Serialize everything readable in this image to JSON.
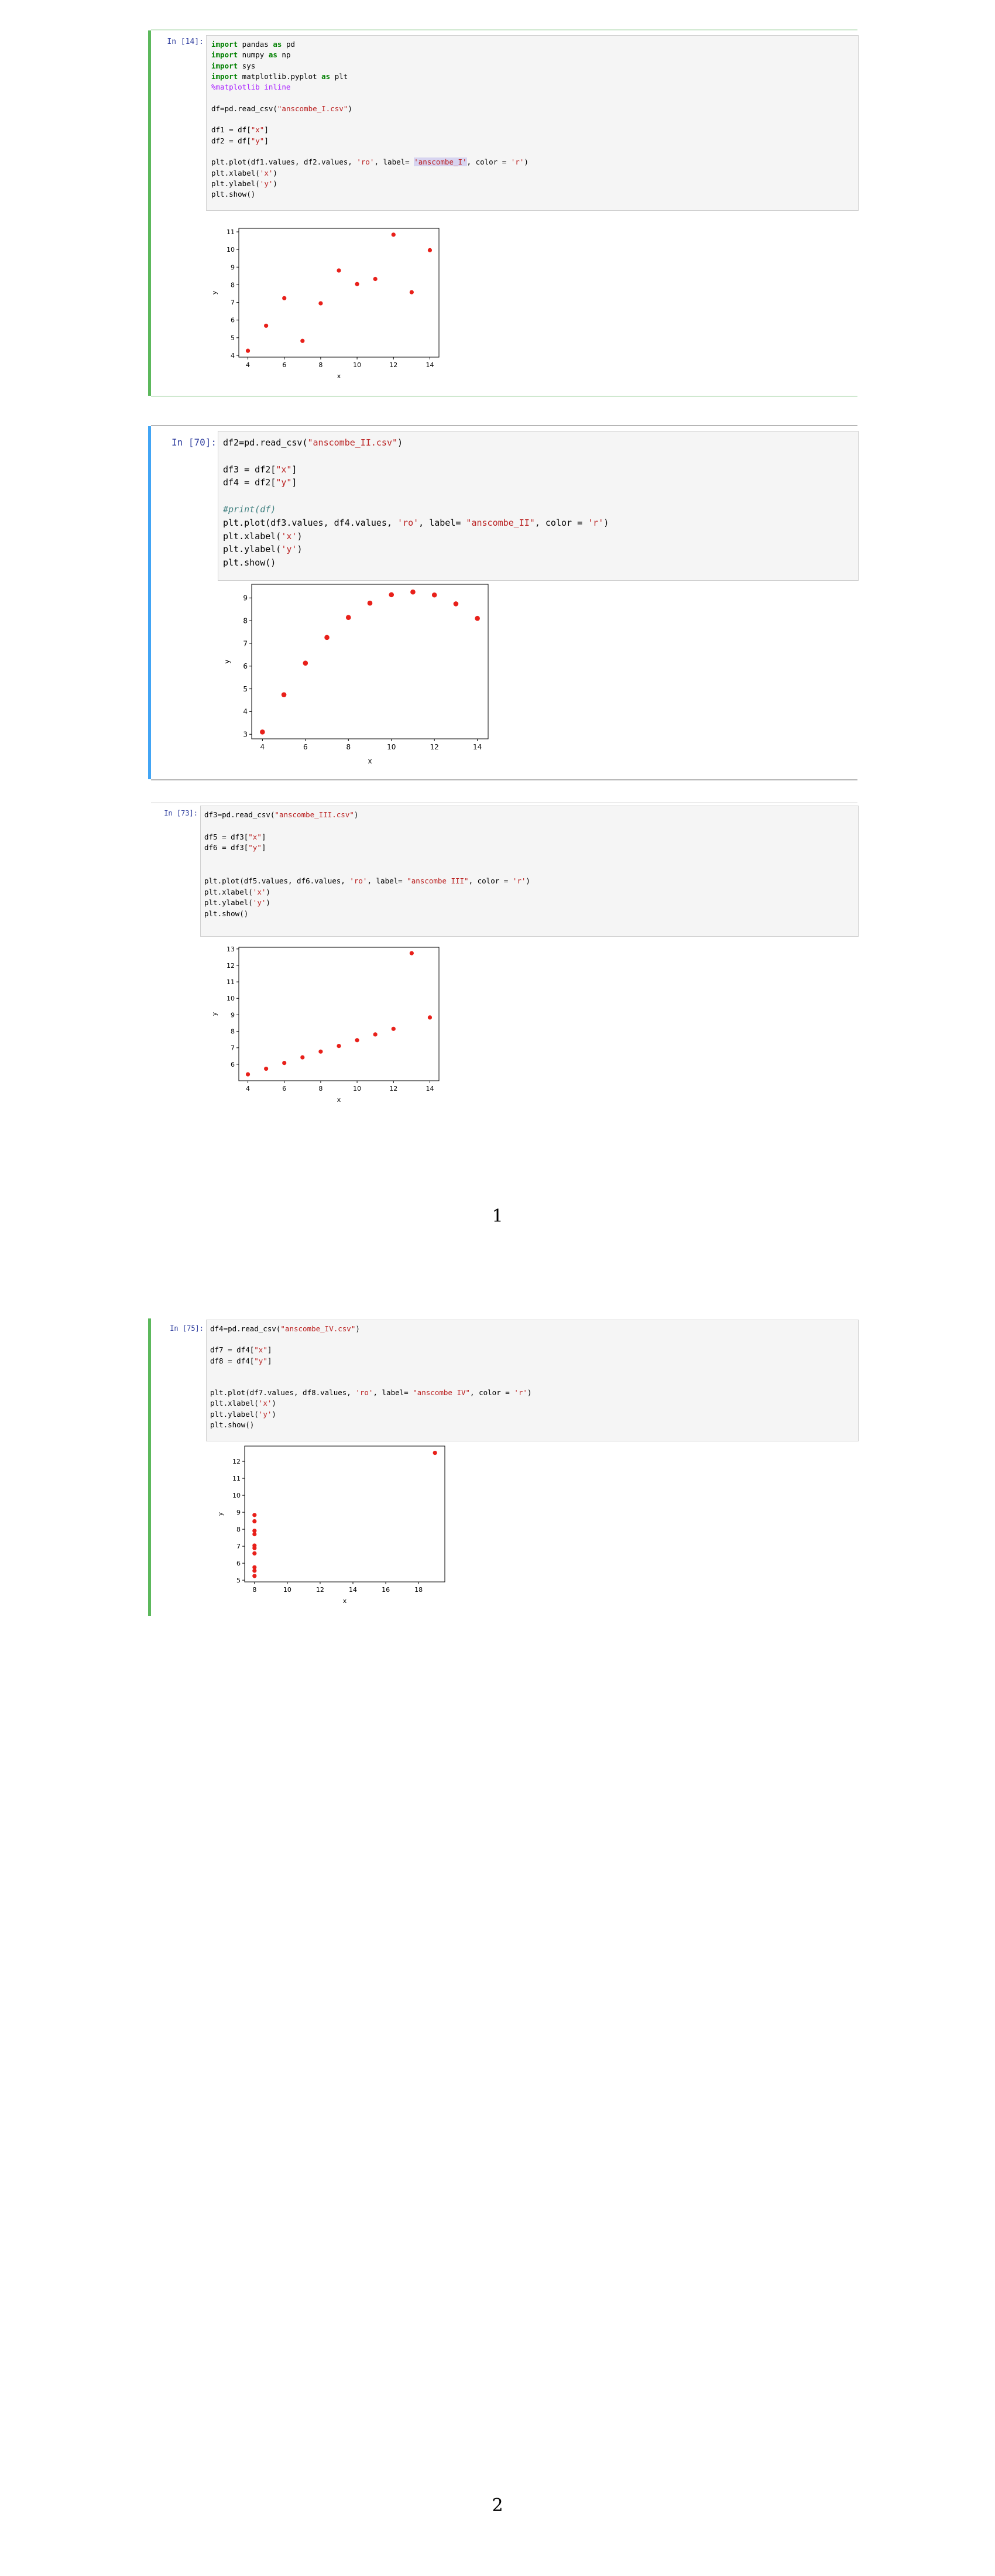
{
  "colors": {
    "marker": "#e8201a",
    "selected_cell": "#42a5f5",
    "cell": "#5cb85c",
    "prompt": "#303f9f"
  },
  "cells": [
    {
      "prompt": "In [14]:",
      "code": [
        [
          [
            "import",
            "kw"
          ],
          [
            " pandas ",
            ""
          ],
          [
            "as",
            "kw"
          ],
          [
            " pd",
            ""
          ]
        ],
        [
          [
            "import",
            "kw"
          ],
          [
            " numpy ",
            ""
          ],
          [
            "as",
            "kw"
          ],
          [
            " np",
            ""
          ]
        ],
        [
          [
            "import",
            "kw"
          ],
          [
            " sys",
            ""
          ]
        ],
        [
          [
            "import",
            "kw"
          ],
          [
            " matplotlib.pyplot ",
            ""
          ],
          [
            "as",
            "kw"
          ],
          [
            " plt",
            ""
          ]
        ],
        [
          [
            "%matplotlib inline",
            "mag"
          ]
        ],
        [],
        [
          [
            "df=pd.read_csv(",
            ""
          ],
          [
            "\"anscombe_I.csv\"",
            "str"
          ],
          [
            ")",
            ""
          ]
        ],
        [],
        [
          [
            "df1 = df[",
            ""
          ],
          [
            "\"x\"",
            "str"
          ],
          [
            "]",
            ""
          ]
        ],
        [
          [
            "df2 = df[",
            ""
          ],
          [
            "\"y\"",
            "str"
          ],
          [
            "]",
            ""
          ]
        ],
        [],
        [
          [
            "plt.plot(df1.values, df2.values, ",
            ""
          ],
          [
            "'ro'",
            "str"
          ],
          [
            ", label= ",
            ""
          ],
          [
            "'anscombe_I'",
            "str hl"
          ],
          [
            ", color = ",
            ""
          ],
          [
            "'r'",
            "str"
          ],
          [
            ")",
            ""
          ]
        ],
        [
          [
            "plt.xlabel(",
            ""
          ],
          [
            "'x'",
            "str"
          ],
          [
            ")",
            ""
          ]
        ],
        [
          [
            "plt.ylabel(",
            ""
          ],
          [
            "'y'",
            "str"
          ],
          [
            ")",
            ""
          ]
        ],
        [
          [
            "plt.show()",
            ""
          ]
        ]
      ],
      "chart_data": {
        "type": "scatter",
        "x": [
          10,
          8,
          13,
          9,
          11,
          14,
          6,
          4,
          12,
          7,
          5
        ],
        "y": [
          8.04,
          6.95,
          7.58,
          8.81,
          8.33,
          9.96,
          7.24,
          4.26,
          10.84,
          4.82,
          5.68
        ],
        "xlabel": "x",
        "ylabel": "y",
        "xticks": [
          4,
          6,
          8,
          10,
          12,
          14
        ],
        "yticks": [
          4,
          5,
          6,
          7,
          8,
          9,
          10,
          11
        ],
        "xlim": [
          3.5,
          14.5
        ],
        "ylim": [
          3.9,
          11.2
        ],
        "grid": false,
        "marker": "ro"
      }
    },
    {
      "prompt": "In [70]:",
      "code": [
        [
          [
            "df2=pd.read_csv(",
            ""
          ],
          [
            "\"anscombe_II.csv\"",
            "str"
          ],
          [
            ")",
            ""
          ]
        ],
        [],
        [
          [
            "df3 = df2[",
            ""
          ],
          [
            "\"x\"",
            "str"
          ],
          [
            "]",
            ""
          ]
        ],
        [
          [
            "df4 = df2[",
            ""
          ],
          [
            "\"y\"",
            "str"
          ],
          [
            "]",
            ""
          ]
        ],
        [],
        [
          [
            "#print(df)",
            "cmt"
          ]
        ],
        [
          [
            "plt.plot(df3.values, df4.values, ",
            ""
          ],
          [
            "'ro'",
            "str"
          ],
          [
            ", label= ",
            ""
          ],
          [
            "\"anscombe_II\"",
            "str"
          ],
          [
            ", color = ",
            ""
          ],
          [
            "'r'",
            "str"
          ],
          [
            ")",
            ""
          ]
        ],
        [
          [
            "plt.xlabel(",
            ""
          ],
          [
            "'x'",
            "str"
          ],
          [
            ")",
            ""
          ]
        ],
        [
          [
            "plt.ylabel(",
            ""
          ],
          [
            "'y'",
            "str"
          ],
          [
            ")",
            ""
          ]
        ],
        [
          [
            "plt.show()",
            ""
          ]
        ]
      ],
      "chart_data": {
        "type": "scatter",
        "x": [
          10,
          8,
          13,
          9,
          11,
          14,
          6,
          4,
          12,
          7,
          5
        ],
        "y": [
          9.14,
          8.14,
          8.74,
          8.77,
          9.26,
          8.1,
          6.13,
          3.1,
          9.13,
          7.26,
          4.74
        ],
        "xlabel": "x",
        "ylabel": "y",
        "xticks": [
          4,
          6,
          8,
          10,
          12,
          14
        ],
        "yticks": [
          3,
          4,
          5,
          6,
          7,
          8,
          9
        ],
        "xlim": [
          3.5,
          14.5
        ],
        "ylim": [
          2.8,
          9.6
        ],
        "grid": false,
        "marker": "ro"
      }
    },
    {
      "prompt": "In [73]:",
      "code": [
        [
          [
            "df3=pd.read_csv(",
            ""
          ],
          [
            "\"anscombe_III.csv\"",
            "str"
          ],
          [
            ")",
            ""
          ]
        ],
        [],
        [
          [
            "df5 = df3[",
            ""
          ],
          [
            "\"x\"",
            "str"
          ],
          [
            "]",
            ""
          ]
        ],
        [
          [
            "df6 = df3[",
            ""
          ],
          [
            "\"y\"",
            "str"
          ],
          [
            "]",
            ""
          ]
        ],
        [],
        [],
        [
          [
            "plt.plot(df5.values, df6.values, ",
            ""
          ],
          [
            "'ro'",
            "str"
          ],
          [
            ", label= ",
            ""
          ],
          [
            "\"anscombe III\"",
            "str"
          ],
          [
            ", color = ",
            ""
          ],
          [
            "'r'",
            "str"
          ],
          [
            ")",
            ""
          ]
        ],
        [
          [
            "plt.xlabel(",
            ""
          ],
          [
            "'x'",
            "str"
          ],
          [
            ")",
            ""
          ]
        ],
        [
          [
            "plt.ylabel(",
            ""
          ],
          [
            "'y'",
            "str"
          ],
          [
            ")",
            ""
          ]
        ],
        [
          [
            "plt.show()",
            ""
          ]
        ]
      ],
      "chart_data": {
        "type": "scatter",
        "x": [
          10,
          8,
          13,
          9,
          11,
          14,
          6,
          4,
          12,
          7,
          5
        ],
        "y": [
          7.46,
          6.77,
          12.74,
          7.11,
          7.81,
          8.84,
          6.08,
          5.39,
          8.15,
          6.42,
          5.73
        ],
        "xlabel": "x",
        "ylabel": "y",
        "xticks": [
          4,
          6,
          8,
          10,
          12,
          14
        ],
        "yticks": [
          6,
          7,
          8,
          9,
          10,
          11,
          12,
          13
        ],
        "xlim": [
          3.5,
          14.5
        ],
        "ylim": [
          5.0,
          13.1
        ],
        "grid": false,
        "marker": "ro"
      }
    },
    {
      "prompt": "In [75]:",
      "code": [
        [
          [
            "df4=pd.read_csv(",
            ""
          ],
          [
            "\"anscombe_IV.csv\"",
            "str"
          ],
          [
            ")",
            ""
          ]
        ],
        [],
        [
          [
            "df7 = df4[",
            ""
          ],
          [
            "\"x\"",
            "str"
          ],
          [
            "]",
            ""
          ]
        ],
        [
          [
            "df8 = df4[",
            ""
          ],
          [
            "\"y\"",
            "str"
          ],
          [
            "]",
            ""
          ]
        ],
        [],
        [],
        [
          [
            "plt.plot(df7.values, df8.values, ",
            ""
          ],
          [
            "'ro'",
            "str"
          ],
          [
            ", label= ",
            ""
          ],
          [
            "\"anscombe IV\"",
            "str"
          ],
          [
            ", color = ",
            ""
          ],
          [
            "'r'",
            "str"
          ],
          [
            ")",
            ""
          ]
        ],
        [
          [
            "plt.xlabel(",
            ""
          ],
          [
            "'x'",
            "str"
          ],
          [
            ")",
            ""
          ]
        ],
        [
          [
            "plt.ylabel(",
            ""
          ],
          [
            "'y'",
            "str"
          ],
          [
            ")",
            ""
          ]
        ],
        [
          [
            "plt.show()",
            ""
          ]
        ]
      ],
      "chart_data": {
        "type": "scatter",
        "x": [
          8,
          8,
          8,
          8,
          8,
          8,
          8,
          19,
          8,
          8,
          8
        ],
        "y": [
          6.58,
          5.76,
          7.71,
          8.84,
          8.47,
          7.04,
          5.25,
          12.5,
          5.56,
          7.91,
          6.89
        ],
        "xlabel": "x",
        "ylabel": "y",
        "xticks": [
          8,
          10,
          12,
          14,
          16,
          18
        ],
        "yticks": [
          5,
          6,
          7,
          8,
          9,
          10,
          11,
          12
        ],
        "xlim": [
          7.4,
          19.6
        ],
        "ylim": [
          4.9,
          12.9
        ],
        "grid": false,
        "marker": "ro"
      }
    }
  ],
  "page_numbers": [
    "1",
    "2"
  ]
}
